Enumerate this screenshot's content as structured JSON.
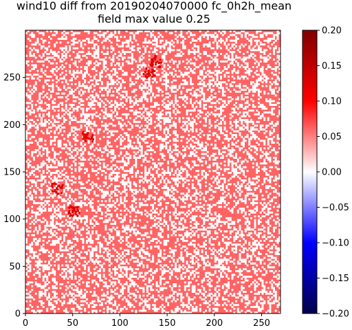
{
  "chart_data": {
    "type": "heatmap",
    "title": "wind10 diff from 20190204070000 fc_0h2h_mean",
    "subtitle": "field max value 0.25",
    "xlim": [
      0,
      270
    ],
    "ylim": [
      0,
      300
    ],
    "x_ticks": [
      0,
      50,
      100,
      150,
      200,
      250
    ],
    "y_ticks": [
      0,
      50,
      100,
      150,
      200,
      250
    ],
    "colorbar": {
      "colormap": "seismic",
      "vmin": -0.2,
      "vmax": 0.2,
      "ticks": [
        0.2,
        0.15,
        0.1,
        0.05,
        0.0,
        -0.05,
        -0.1,
        -0.15,
        -0.2
      ],
      "tick_labels": [
        "0.20",
        "0.15",
        "0.10",
        "0.05",
        "0.00",
        "−0.05",
        "−0.10",
        "−0.15",
        "−0.20"
      ]
    },
    "field": {
      "description_values": [
        0,
        0.05
      ],
      "dominant_value": 0.05,
      "zero_fraction": 0.35,
      "hotspots": [
        {
          "x": 130,
          "y": 255,
          "value": 0.12
        },
        {
          "x": 33,
          "y": 133,
          "value": 0.12
        },
        {
          "x": 65,
          "y": 188,
          "value": 0.1
        },
        {
          "x": 137,
          "y": 268,
          "value": 0.1
        },
        {
          "x": 50,
          "y": 110,
          "value": 0.09
        }
      ]
    },
    "colors": {
      "positive_005": "#ff6464",
      "zero": "#ffffff",
      "hotspot": "#e00000"
    }
  }
}
